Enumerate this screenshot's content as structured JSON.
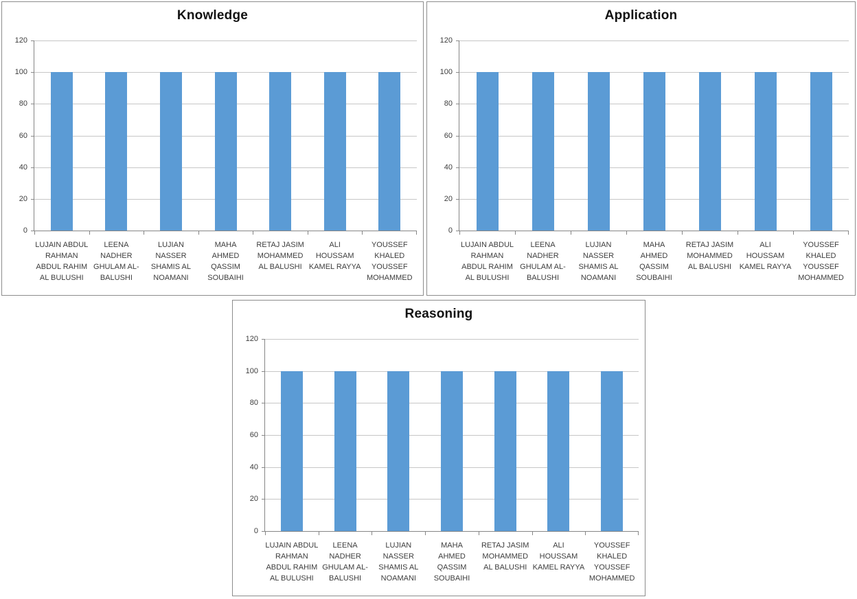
{
  "page": {
    "background_color": "#ffffff",
    "panel_border_color": "#8c8c8c",
    "gridline_color": "#c6c6c6",
    "axis_color": "#868686",
    "text_color": "#3d3d3d",
    "title_color": "#121212"
  },
  "chart_data": [
    {
      "type": "bar",
      "title": "Knowledge",
      "categories": [
        "LUJAIN ABDUL RAHMAN ABDUL RAHIM AL BULUSHI",
        "LEENA NADHER GHULAM AL-BALUSHI",
        "LUJIAN NASSER SHAMIS AL NOAMANI",
        "MAHA AHMED QASSIM SOUBAIHI",
        "RETAJ JASIM MOHAMMED AL BALUSHI",
        "ALI HOUSSAM KAMEL RAYYA",
        "YOUSSEF KHALED YOUSSEF MOHAMMED"
      ],
      "category_label_lines": [
        [
          "LUJAIN ABDUL",
          "RAHMAN",
          "ABDUL RAHIM",
          "AL BULUSHI"
        ],
        [
          "LEENA",
          "NADHER",
          "GHULAM AL-",
          "BALUSHI"
        ],
        [
          "LUJIAN",
          "NASSER",
          "SHAMIS AL",
          "NOAMANI"
        ],
        [
          "MAHA",
          "AHMED",
          "QASSIM",
          "SOUBAIHI"
        ],
        [
          "RETAJ JASIM",
          "MOHAMMED",
          "AL BALUSHI"
        ],
        [
          "ALI",
          "HOUSSAM",
          "KAMEL RAYYA"
        ],
        [
          "YOUSSEF",
          "KHALED",
          "YOUSSEF",
          "MOHAMMED"
        ]
      ],
      "values": [
        100,
        100,
        100,
        100,
        100,
        100,
        100
      ],
      "ylim": [
        0,
        120
      ],
      "yticks": [
        0,
        20,
        40,
        60,
        80,
        100,
        120
      ],
      "grid": true,
      "legend": "none",
      "bar_color": "#5b9bd5"
    },
    {
      "type": "bar",
      "title": "Application",
      "categories": [
        "LUJAIN ABDUL RAHMAN ABDUL RAHIM AL BULUSHI",
        "LEENA NADHER GHULAM AL-BALUSHI",
        "LUJIAN NASSER SHAMIS AL NOAMANI",
        "MAHA AHMED QASSIM SOUBAIHI",
        "RETAJ JASIM MOHAMMED AL BALUSHI",
        "ALI HOUSSAM KAMEL RAYYA",
        "YOUSSEF KHALED YOUSSEF MOHAMMED"
      ],
      "category_label_lines": [
        [
          "LUJAIN ABDUL",
          "RAHMAN",
          "ABDUL RAHIM",
          "AL BULUSHI"
        ],
        [
          "LEENA",
          "NADHER",
          "GHULAM AL-",
          "BALUSHI"
        ],
        [
          "LUJIAN",
          "NASSER",
          "SHAMIS AL",
          "NOAMANI"
        ],
        [
          "MAHA",
          "AHMED",
          "QASSIM",
          "SOUBAIHI"
        ],
        [
          "RETAJ JASIM",
          "MOHAMMED",
          "AL BALUSHI"
        ],
        [
          "ALI",
          "HOUSSAM",
          "KAMEL RAYYA"
        ],
        [
          "YOUSSEF",
          "KHALED",
          "YOUSSEF",
          "MOHAMMED"
        ]
      ],
      "values": [
        100,
        100,
        100,
        100,
        100,
        100,
        100
      ],
      "ylim": [
        0,
        120
      ],
      "yticks": [
        0,
        20,
        40,
        60,
        80,
        100,
        120
      ],
      "grid": true,
      "legend": "none",
      "bar_color": "#5b9bd5"
    },
    {
      "type": "bar",
      "title": "Reasoning",
      "categories": [
        "LUJAIN ABDUL RAHMAN ABDUL RAHIM AL BULUSHI",
        "LEENA NADHER GHULAM AL-BALUSHI",
        "LUJIAN NASSER SHAMIS AL NOAMANI",
        "MAHA AHMED QASSIM SOUBAIHI",
        "RETAJ JASIM MOHAMMED AL BALUSHI",
        "ALI HOUSSAM KAMEL RAYYA",
        "YOUSSEF KHALED YOUSSEF MOHAMMED"
      ],
      "category_label_lines": [
        [
          "LUJAIN ABDUL",
          "RAHMAN",
          "ABDUL RAHIM",
          "AL BULUSHI"
        ],
        [
          "LEENA",
          "NADHER",
          "GHULAM AL-",
          "BALUSHI"
        ],
        [
          "LUJIAN",
          "NASSER",
          "SHAMIS AL",
          "NOAMANI"
        ],
        [
          "MAHA",
          "AHMED",
          "QASSIM",
          "SOUBAIHI"
        ],
        [
          "RETAJ JASIM",
          "MOHAMMED",
          "AL BALUSHI"
        ],
        [
          "ALI",
          "HOUSSAM",
          "KAMEL RAYYA"
        ],
        [
          "YOUSSEF",
          "KHALED",
          "YOUSSEF",
          "MOHAMMED"
        ]
      ],
      "values": [
        100,
        100,
        100,
        100,
        100,
        100,
        100
      ],
      "ylim": [
        0,
        120
      ],
      "yticks": [
        0,
        20,
        40,
        60,
        80,
        100,
        120
      ],
      "grid": true,
      "legend": "none",
      "bar_color": "#5b9bd5"
    }
  ]
}
